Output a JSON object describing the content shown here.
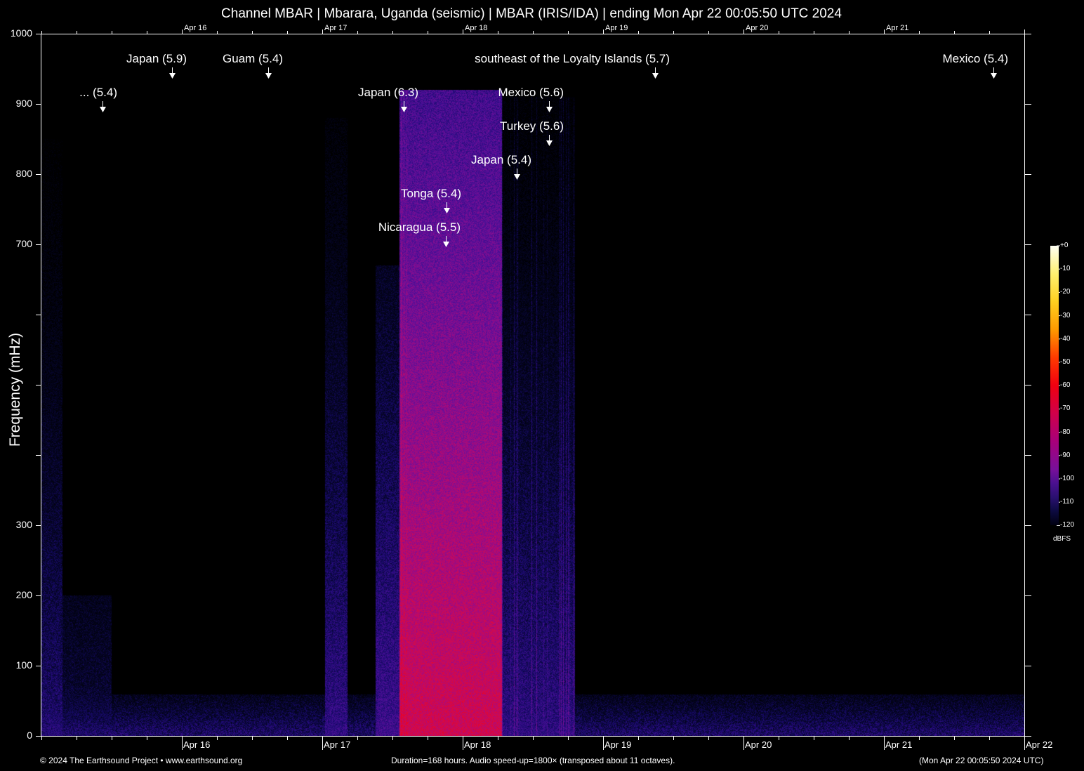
{
  "title": "Channel MBAR | Mbarara, Uganda (seismic) | MBAR (IRIS/IDA) | ending Mon Apr 22 00:05:50 UTC 2024",
  "chart_data": {
    "type": "heatmap",
    "title": "Channel MBAR | Mbarara, Uganda (seismic) | MBAR (IRIS/IDA) | ending Mon Apr 22 00:05:50 UTC 2024",
    "xlabel": "",
    "ylabel": "Frequency (mHz)",
    "ylim": [
      0,
      1000
    ],
    "y_ticks": [
      "0",
      "100",
      "200",
      "300",
      "",
      "",
      "",
      "700",
      "800",
      "900",
      "1000"
    ],
    "x_ticks": [
      "Apr 16",
      "Apr 17",
      "Apr 18",
      "Apr 19",
      "Apr 20",
      "Apr 21",
      "Apr 22"
    ],
    "x_ticks_top": [
      "Apr 16",
      "Apr 17",
      "Apr 18",
      "Apr 19",
      "Apr 20",
      "Apr 21"
    ],
    "colorbar": {
      "label": "dBFS",
      "ticks": [
        "+0",
        "-10",
        "-20",
        "-30",
        "-40",
        "-50",
        "-60",
        "-70",
        "-80",
        "-90",
        "-100",
        "-110",
        "-120"
      ],
      "range": [
        -120,
        0
      ]
    },
    "colormap": [
      "#000010",
      "#0c0a40",
      "#4a1090",
      "#a8007a",
      "#f00010",
      "#ff9a00",
      "#fff070",
      "#fffff4"
    ],
    "annotations": [
      "... (5.4)",
      "Japan (5.9)",
      "Guam (5.4)",
      "Japan (6.3)",
      "southeast of the Loyalty Islands (5.7)",
      "Mexico (5.6)",
      "Turkey (5.6)",
      "Japan (5.4)",
      "Tonga (5.4)",
      "Nicaragua (5.5)",
      "Mexico (5.4)"
    ]
  },
  "footer": {
    "copyright": "© 2024 The Earthsound Project • www.earthsound.org",
    "info": "Duration=168 hours. Audio speed-up=1800× (transposed about 11 octaves).",
    "end": "(Mon Apr 22 00:05:50 2024 UTC)"
  }
}
